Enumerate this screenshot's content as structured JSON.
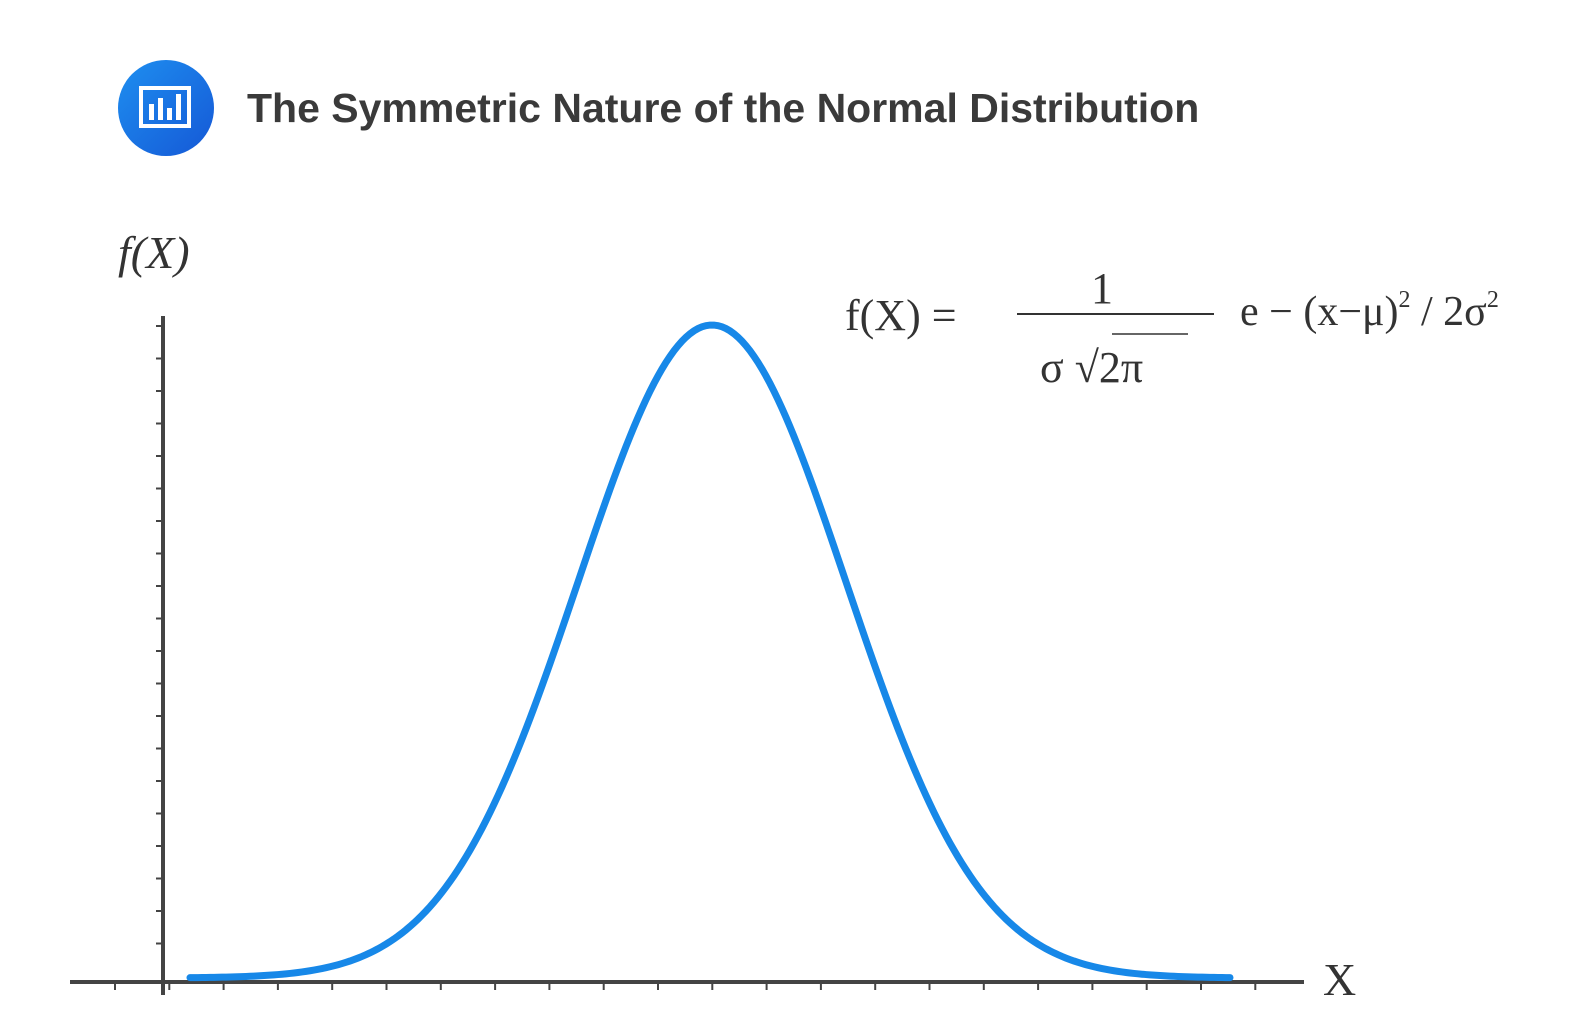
{
  "header": {
    "title": "The Symmetric Nature of the Normal Distribution"
  },
  "axes": {
    "y_label": "f(X)",
    "x_label": "X"
  },
  "formula": {
    "lhs": "f(X) =",
    "numerator": "1",
    "denominator": "σ √2π",
    "exponent": [
      "e − (x−μ)",
      "2",
      " / 2σ",
      "2"
    ]
  }
}
